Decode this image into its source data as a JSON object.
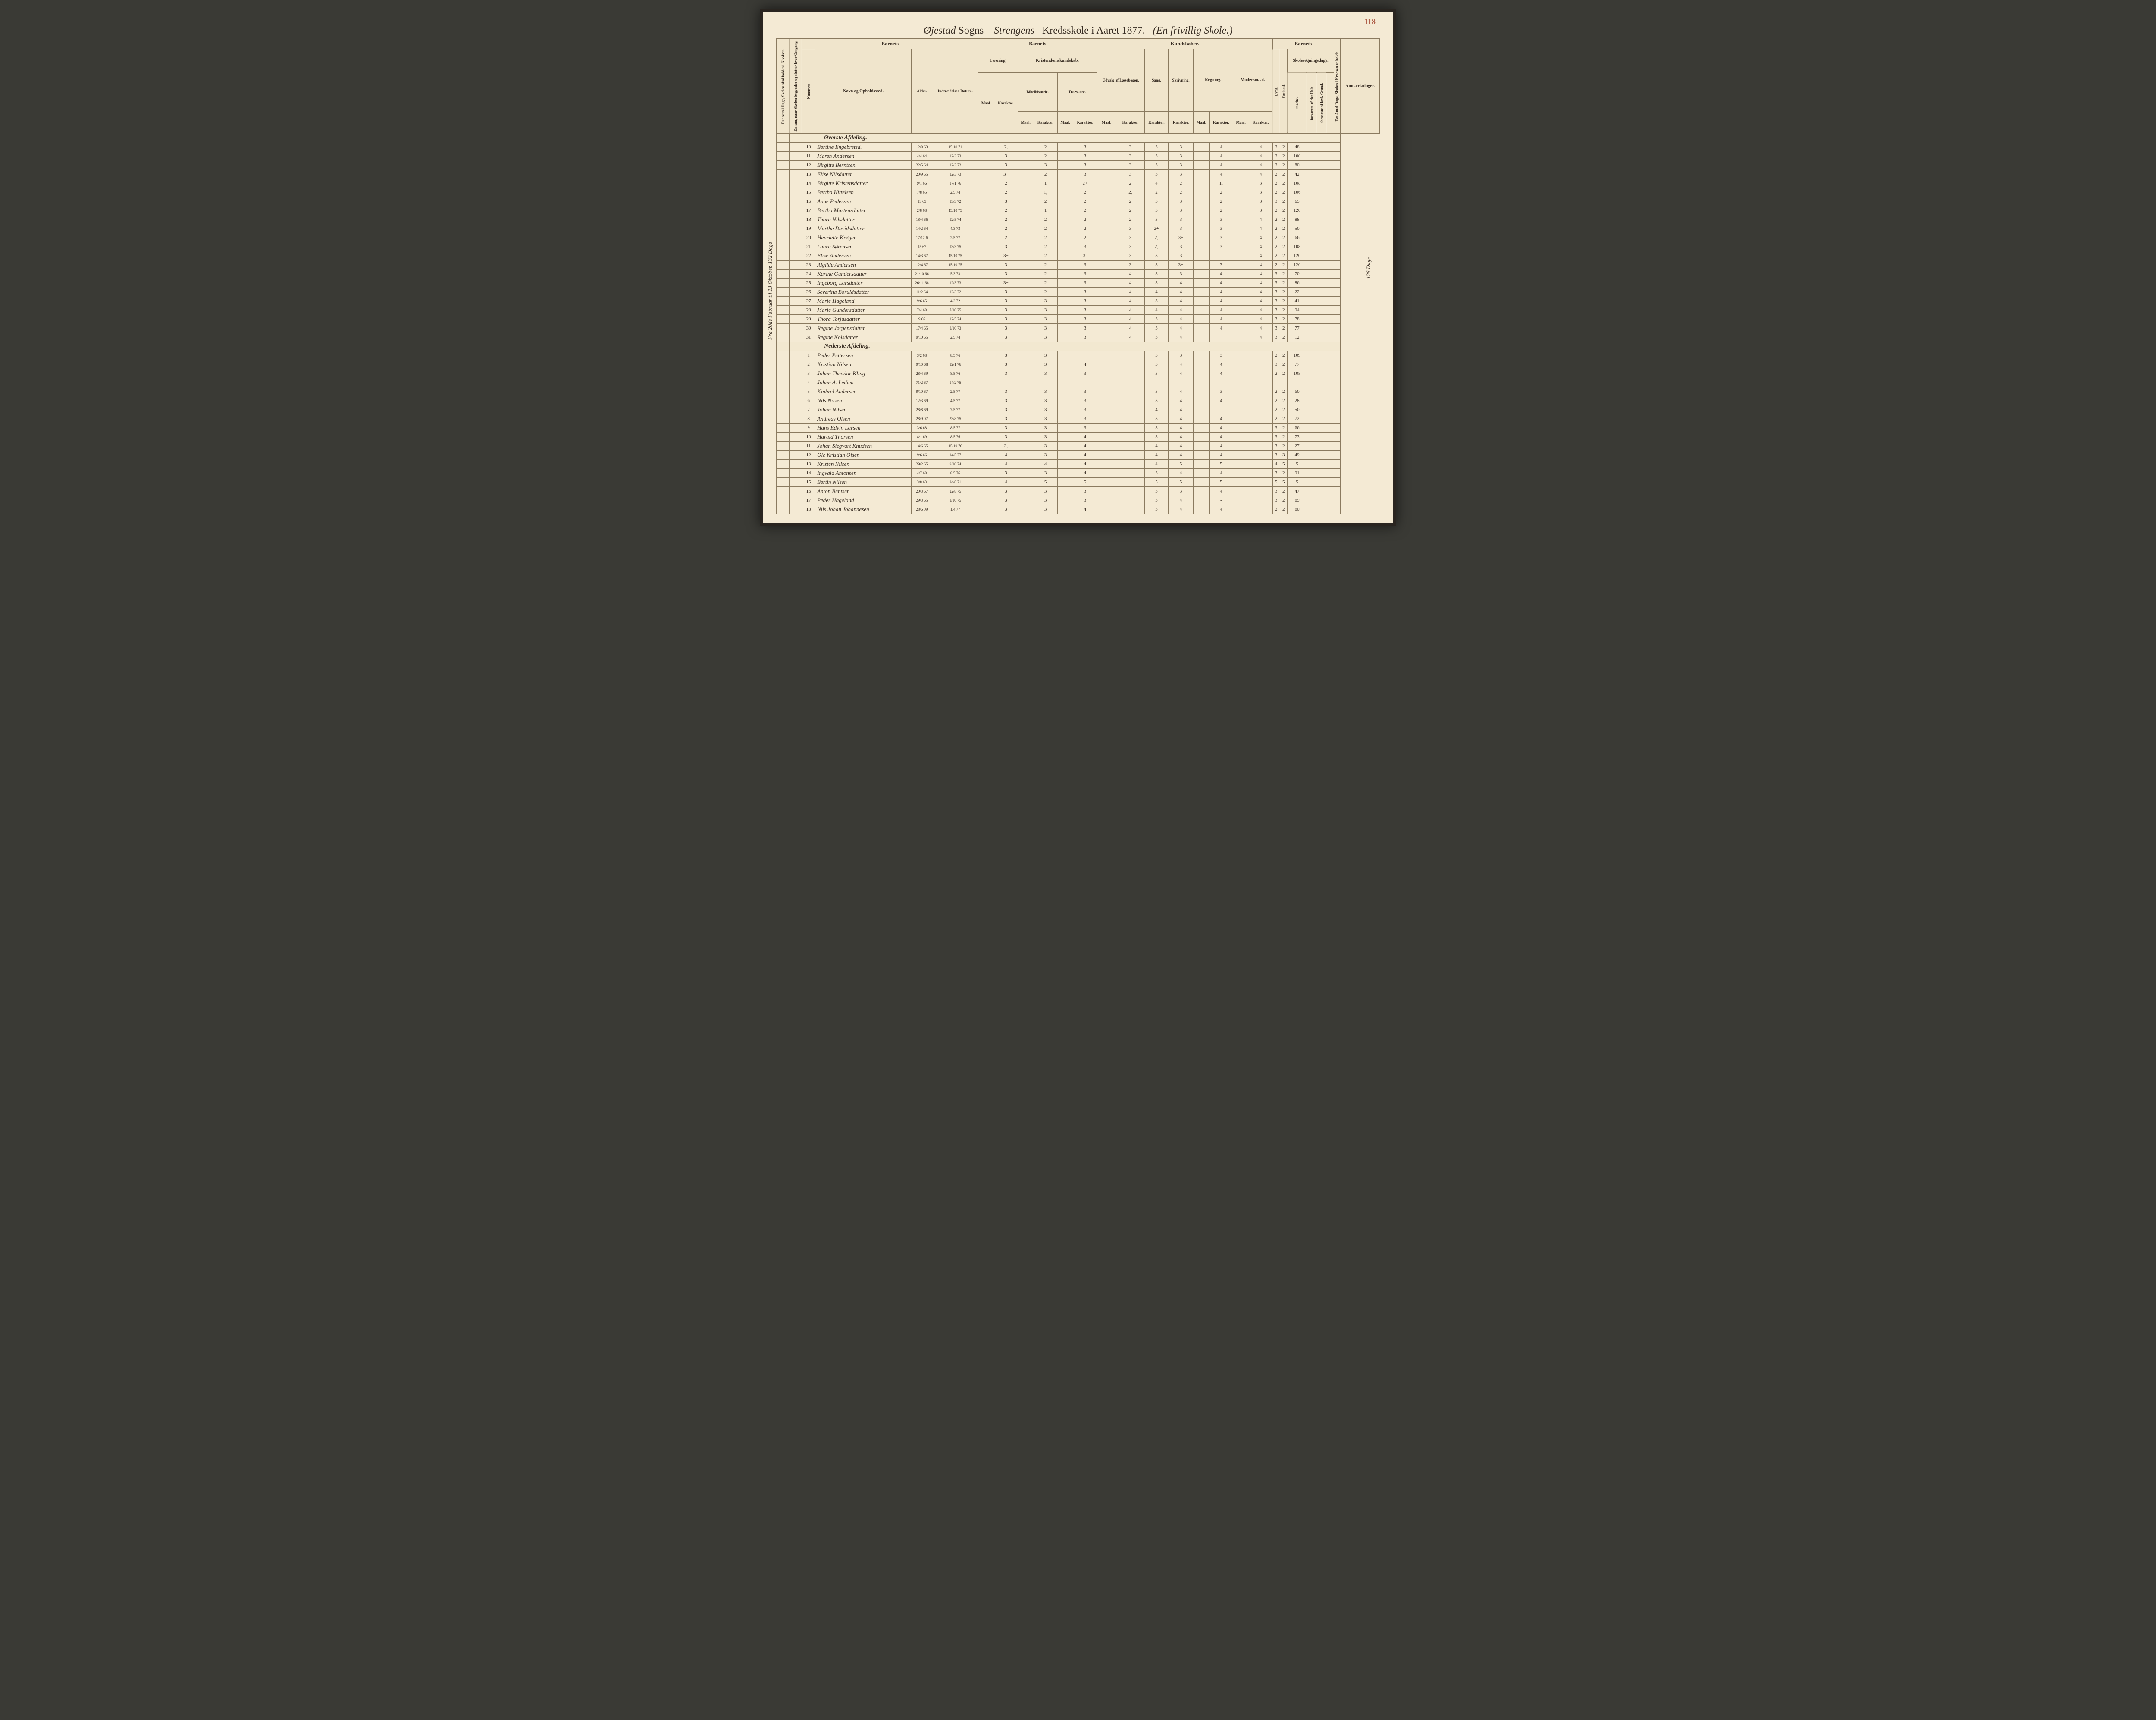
{
  "page_number": "118",
  "title_left": "Øjestad",
  "title_sogns": "Sogns",
  "title_over": "Strengens",
  "title_right": "Kredsskole i Aaret 1877.",
  "title_paren": "(En frivillig Skole.)",
  "margin_left": "Fra 20de Februar til 13 Oktober.  132 Dage",
  "margin_right": "126 Dage",
  "headers": {
    "g_barnets1": "Barnets",
    "g_barnets2": "Barnets",
    "g_kundskaber": "Kundskaber.",
    "g_barnets3": "Barnets",
    "anm": "Anmærkninger.",
    "antal_dage_left": "Det Antal Dage, Skolen skal holdes i Kredsen.",
    "datum": "Datum, naar Skolen begynder og slutter hver Omgang.",
    "nummer": "Nummer.",
    "navn": "Navn og Opholdssted.",
    "alder": "Alder.",
    "indtr": "Indtrædelses-Datum.",
    "laesning": "Læsning.",
    "kristendom": "Kristendomskundskab.",
    "bibel": "Bibelhistorie.",
    "troes": "Troeslære.",
    "udvalg": "Udvalg af Læsebogen.",
    "sang": "Sang.",
    "skriv": "Skrivning.",
    "regning": "Regning.",
    "moders": "Modersmaal.",
    "skoles": "Skolesøgningsdage.",
    "maal": "Maal.",
    "karak": "Karakter.",
    "evne": "Evne.",
    "forhold": "Forhold.",
    "modte": "mødte.",
    "fors_hele": "forsømte af det Hele.",
    "fors_grund": "forsømte af lovl. Grund.",
    "antal_dage_right": "Det Antal Dage, Skolen i Kredsen er holdt."
  },
  "section1": "Øverste Afdeling.",
  "section2": "Nederste Afdeling.",
  "rows1": [
    {
      "n": "10",
      "name": "Bertine Engebretsd.",
      "ald": "12/8 63",
      "ind": "15/10 71",
      "l_m": "",
      "l_k": "2,",
      "b_m": "",
      "b_k": "2",
      "t_m": "",
      "t_k": "3",
      "u_m": "",
      "u_k": "3",
      "sa": "3",
      "sk": "3",
      "r_m": "",
      "r_k": "4",
      "m_m": "",
      "m_k": "4",
      "ev": "2",
      "fo": "2",
      "mo": "48",
      "f1": "",
      "f2": ""
    },
    {
      "n": "11",
      "name": "Maren Andersen",
      "ald": "4/4 64",
      "ind": "12/3 73",
      "l_m": "",
      "l_k": "3",
      "b_m": "",
      "b_k": "2",
      "t_m": "",
      "t_k": "3",
      "u_m": "",
      "u_k": "3",
      "sa": "3",
      "sk": "3",
      "r_m": "",
      "r_k": "4",
      "m_m": "",
      "m_k": "4",
      "ev": "2",
      "fo": "2",
      "mo": "100",
      "f1": "",
      "f2": ""
    },
    {
      "n": "12",
      "name": "Birgitte Berntsen",
      "ald": "22/5 64",
      "ind": "12/3 72",
      "l_m": "",
      "l_k": "3",
      "b_m": "",
      "b_k": "3",
      "t_m": "",
      "t_k": "3",
      "u_m": "",
      "u_k": "3",
      "sa": "3",
      "sk": "3",
      "r_m": "",
      "r_k": "4",
      "m_m": "",
      "m_k": "4",
      "ev": "2",
      "fo": "2",
      "mo": "80",
      "f1": "",
      "f2": ""
    },
    {
      "n": "13",
      "name": "Elise Nilsdatter",
      "ald": "20/9 65",
      "ind": "12/3 73",
      "l_m": "",
      "l_k": "3+",
      "b_m": "",
      "b_k": "2",
      "t_m": "",
      "t_k": "3",
      "u_m": "",
      "u_k": "3",
      "sa": "3",
      "sk": "3",
      "r_m": "",
      "r_k": "4",
      "m_m": "",
      "m_k": "4",
      "ev": "2",
      "fo": "2",
      "mo": "42",
      "f1": "",
      "f2": ""
    },
    {
      "n": "14",
      "name": "Birgitte Kristensdatter",
      "ald": "9/1 66",
      "ind": "17/1 76",
      "l_m": "",
      "l_k": "2",
      "b_m": "",
      "b_k": "1",
      "t_m": "",
      "t_k": "2+",
      "u_m": "",
      "u_k": "2",
      "sa": "4",
      "sk": "2",
      "r_m": "",
      "r_k": "1,",
      "m_m": "",
      "m_k": "3",
      "ev": "2",
      "fo": "2",
      "mo": "108",
      "f1": "",
      "f2": ""
    },
    {
      "n": "15",
      "name": "Bertha Kittelsen",
      "ald": "7/8 65",
      "ind": "2/5 74",
      "l_m": "",
      "l_k": "2",
      "b_m": "",
      "b_k": "1,",
      "t_m": "",
      "t_k": "2",
      "u_m": "",
      "u_k": "2,",
      "sa": "2",
      "sk": "2",
      "r_m": "",
      "r_k": "2",
      "m_m": "",
      "m_k": "3",
      "ev": "2",
      "fo": "2",
      "mo": "106",
      "f1": "",
      "f2": ""
    },
    {
      "n": "16",
      "name": "Anne Pedersen",
      "ald": "13 65",
      "ind": "13/3 72",
      "l_m": "",
      "l_k": "3",
      "b_m": "",
      "b_k": "2",
      "t_m": "",
      "t_k": "2",
      "u_m": "",
      "u_k": "2",
      "sa": "3",
      "sk": "3",
      "r_m": "",
      "r_k": "2",
      "m_m": "",
      "m_k": "3",
      "ev": "3",
      "fo": "2",
      "mo": "65",
      "f1": "",
      "f2": ""
    },
    {
      "n": "17",
      "name": "Bertha Martensdatter",
      "ald": "2/8 68",
      "ind": "15/10 75",
      "l_m": "",
      "l_k": "2",
      "b_m": "",
      "b_k": "1",
      "t_m": "",
      "t_k": "2",
      "u_m": "",
      "u_k": "2",
      "sa": "3",
      "sk": "3",
      "r_m": "",
      "r_k": "2",
      "m_m": "",
      "m_k": "3",
      "ev": "2",
      "fo": "2",
      "mo": "120",
      "f1": "",
      "f2": ""
    },
    {
      "n": "18",
      "name": "Thora Nilsdatter",
      "ald": "18/4 66",
      "ind": "12/5 74",
      "l_m": "",
      "l_k": "2",
      "b_m": "",
      "b_k": "2",
      "t_m": "",
      "t_k": "2",
      "u_m": "",
      "u_k": "2",
      "sa": "3",
      "sk": "3",
      "r_m": "",
      "r_k": "3",
      "m_m": "",
      "m_k": "4",
      "ev": "2",
      "fo": "2",
      "mo": "88",
      "f1": "",
      "f2": ""
    },
    {
      "n": "19",
      "name": "Marthe Davidsdatter",
      "ald": "14/2 64",
      "ind": "4/3 73",
      "l_m": "",
      "l_k": "2",
      "b_m": "",
      "b_k": "2",
      "t_m": "",
      "t_k": "2",
      "u_m": "",
      "u_k": "3",
      "sa": "2+",
      "sk": "3",
      "r_m": "",
      "r_k": "3",
      "m_m": "",
      "m_k": "4",
      "ev": "2",
      "fo": "2",
      "mo": "50",
      "f1": "",
      "f2": ""
    },
    {
      "n": "20",
      "name": "Henriette Krøger",
      "ald": "17/12 6",
      "ind": "2/5 77",
      "l_m": "",
      "l_k": "2",
      "b_m": "",
      "b_k": "2",
      "t_m": "",
      "t_k": "2",
      "u_m": "",
      "u_k": "3",
      "sa": "2,",
      "sk": "3+",
      "r_m": "",
      "r_k": "3",
      "m_m": "",
      "m_k": "4",
      "ev": "2",
      "fo": "2",
      "mo": "66",
      "f1": "",
      "f2": ""
    },
    {
      "n": "21",
      "name": "Laura Sørensen",
      "ald": "15 67",
      "ind": "13/3 75",
      "l_m": "",
      "l_k": "3",
      "b_m": "",
      "b_k": "2",
      "t_m": "",
      "t_k": "3",
      "u_m": "",
      "u_k": "3",
      "sa": "2,",
      "sk": "3",
      "r_m": "",
      "r_k": "3",
      "m_m": "",
      "m_k": "4",
      "ev": "2",
      "fo": "2",
      "mo": "108",
      "f1": "",
      "f2": ""
    },
    {
      "n": "22",
      "name": "Elise Andersen",
      "ald": "14/3 67",
      "ind": "15/10 75",
      "l_m": "",
      "l_k": "3+",
      "b_m": "",
      "b_k": "2",
      "t_m": "",
      "t_k": "3-",
      "u_m": "",
      "u_k": "3",
      "sa": "3",
      "sk": "3",
      "r_m": "",
      "r_k": "",
      "m_m": "",
      "m_k": "4",
      "ev": "2",
      "fo": "2",
      "mo": "120",
      "f1": "",
      "f2": ""
    },
    {
      "n": "23",
      "name": "Algilde Andersen",
      "ald": "12/4 67",
      "ind": "15/10 75",
      "l_m": "",
      "l_k": "3",
      "b_m": "",
      "b_k": "2",
      "t_m": "",
      "t_k": "3",
      "u_m": "",
      "u_k": "3",
      "sa": "3",
      "sk": "3+",
      "r_m": "",
      "r_k": "3",
      "m_m": "",
      "m_k": "4",
      "ev": "2",
      "fo": "2",
      "mo": "120",
      "f1": "",
      "f2": ""
    },
    {
      "n": "24",
      "name": "Karine Gundersdatter",
      "ald": "21/10 66",
      "ind": "5/3 73",
      "l_m": "",
      "l_k": "3",
      "b_m": "",
      "b_k": "2",
      "t_m": "",
      "t_k": "3",
      "u_m": "",
      "u_k": "4",
      "sa": "3",
      "sk": "3",
      "r_m": "",
      "r_k": "4",
      "m_m": "",
      "m_k": "4",
      "ev": "3",
      "fo": "2",
      "mo": "70",
      "f1": "",
      "f2": ""
    },
    {
      "n": "25",
      "name": "Ingeborg Larsdatter",
      "ald": "26/11 66",
      "ind": "12/3 73",
      "l_m": "",
      "l_k": "3+",
      "b_m": "",
      "b_k": "2",
      "t_m": "",
      "t_k": "3",
      "u_m": "",
      "u_k": "4",
      "sa": "3",
      "sk": "4",
      "r_m": "",
      "r_k": "4",
      "m_m": "",
      "m_k": "4",
      "ev": "3",
      "fo": "2",
      "mo": "86",
      "f1": "",
      "f2": ""
    },
    {
      "n": "26",
      "name": "Severina Børuldsdatter",
      "ald": "11/2 64",
      "ind": "12/3 72",
      "l_m": "",
      "l_k": "3",
      "b_m": "",
      "b_k": "2",
      "t_m": "",
      "t_k": "3",
      "u_m": "",
      "u_k": "4",
      "sa": "4",
      "sk": "4",
      "r_m": "",
      "r_k": "4",
      "m_m": "",
      "m_k": "4",
      "ev": "3",
      "fo": "2",
      "mo": "22",
      "f1": "",
      "f2": ""
    },
    {
      "n": "27",
      "name": "Marie Hageland",
      "ald": "9/6 65",
      "ind": "4/2 72",
      "l_m": "",
      "l_k": "3",
      "b_m": "",
      "b_k": "3",
      "t_m": "",
      "t_k": "3",
      "u_m": "",
      "u_k": "4",
      "sa": "3",
      "sk": "4",
      "r_m": "",
      "r_k": "4",
      "m_m": "",
      "m_k": "4",
      "ev": "3",
      "fo": "2",
      "mo": "41",
      "f1": "",
      "f2": ""
    },
    {
      "n": "28",
      "name": "Marie Gundersdatter",
      "ald": "7/4 68",
      "ind": "7/10 75",
      "l_m": "",
      "l_k": "3",
      "b_m": "",
      "b_k": "3",
      "t_m": "",
      "t_k": "3",
      "u_m": "",
      "u_k": "4",
      "sa": "4",
      "sk": "4",
      "r_m": "",
      "r_k": "4",
      "m_m": "",
      "m_k": "4",
      "ev": "3",
      "fo": "2",
      "mo": "94",
      "f1": "",
      "f2": ""
    },
    {
      "n": "29",
      "name": "Thora Torjusdatter",
      "ald": "9 66",
      "ind": "12/5 74",
      "l_m": "",
      "l_k": "3",
      "b_m": "",
      "b_k": "3",
      "t_m": "",
      "t_k": "3",
      "u_m": "",
      "u_k": "4",
      "sa": "3",
      "sk": "4",
      "r_m": "",
      "r_k": "4",
      "m_m": "",
      "m_k": "4",
      "ev": "3",
      "fo": "2",
      "mo": "78",
      "f1": "",
      "f2": ""
    },
    {
      "n": "30",
      "name": "Regine Jørgensdatter",
      "ald": "17/4 65",
      "ind": "3/10 73",
      "l_m": "",
      "l_k": "3",
      "b_m": "",
      "b_k": "3",
      "t_m": "",
      "t_k": "3",
      "u_m": "",
      "u_k": "4",
      "sa": "3",
      "sk": "4",
      "r_m": "",
      "r_k": "4",
      "m_m": "",
      "m_k": "4",
      "ev": "3",
      "fo": "2",
      "mo": "77",
      "f1": "",
      "f2": ""
    },
    {
      "n": "31",
      "name": "Regine Kolsdatter",
      "ald": "9/10 65",
      "ind": "2/5 74",
      "l_m": "",
      "l_k": "3",
      "b_m": "",
      "b_k": "3",
      "t_m": "",
      "t_k": "3",
      "u_m": "",
      "u_k": "4",
      "sa": "3",
      "sk": "4",
      "r_m": "",
      "r_k": "",
      "m_m": "",
      "m_k": "4",
      "ev": "3",
      "fo": "2",
      "mo": "12",
      "f1": "",
      "f2": ""
    }
  ],
  "rows2": [
    {
      "n": "1",
      "name": "Peder Pettersen",
      "ald": "3/2 68",
      "ind": "8/5 76",
      "l_m": "",
      "l_k": "3",
      "b_m": "",
      "b_k": "3",
      "t_m": "",
      "t_k": "",
      "u_m": "",
      "u_k": "",
      "sa": "3",
      "sk": "3",
      "r_m": "",
      "r_k": "3",
      "m_m": "",
      "m_k": "",
      "ev": "2",
      "fo": "2",
      "mo": "109",
      "f1": "",
      "f2": ""
    },
    {
      "n": "2",
      "name": "Kristian Nilsen",
      "ald": "9/10 68",
      "ind": "12/1 76",
      "l_m": "",
      "l_k": "3",
      "b_m": "",
      "b_k": "3",
      "t_m": "",
      "t_k": "4",
      "u_m": "",
      "u_k": "",
      "sa": "3",
      "sk": "4",
      "r_m": "",
      "r_k": "4",
      "m_m": "",
      "m_k": "",
      "ev": "3",
      "fo": "2",
      "mo": "77",
      "f1": "",
      "f2": ""
    },
    {
      "n": "3",
      "name": "Johan Theodor Kling",
      "ald": "28/4 69",
      "ind": "8/5 76",
      "l_m": "",
      "l_k": "3",
      "b_m": "",
      "b_k": "3",
      "t_m": "",
      "t_k": "3",
      "u_m": "",
      "u_k": "",
      "sa": "3",
      "sk": "4",
      "r_m": "",
      "r_k": "4",
      "m_m": "",
      "m_k": "",
      "ev": "2",
      "fo": "2",
      "mo": "105",
      "f1": "",
      "f2": ""
    },
    {
      "n": "4",
      "name": "Johan A. Ledien",
      "ald": "71/2 67",
      "ind": "14/2 75",
      "l_m": "",
      "l_k": "",
      "b_m": "",
      "b_k": "",
      "t_m": "",
      "t_k": "",
      "u_m": "",
      "u_k": "",
      "sa": "",
      "sk": "",
      "r_m": "",
      "r_k": "",
      "m_m": "",
      "m_k": "",
      "ev": "",
      "fo": "",
      "mo": "",
      "f1": "",
      "f2": ""
    },
    {
      "n": "5",
      "name": "Kinbrel Andersen",
      "ald": "9/10 67",
      "ind": "2/5 77",
      "l_m": "",
      "l_k": "3",
      "b_m": "",
      "b_k": "3",
      "t_m": "",
      "t_k": "3",
      "u_m": "",
      "u_k": "",
      "sa": "3",
      "sk": "4",
      "r_m": "",
      "r_k": "3",
      "m_m": "",
      "m_k": "",
      "ev": "2",
      "fo": "2",
      "mo": "60",
      "f1": "",
      "f2": ""
    },
    {
      "n": "6",
      "name": "Nils Nilsen",
      "ald": "12/3 69",
      "ind": "4/5 77",
      "l_m": "",
      "l_k": "3",
      "b_m": "",
      "b_k": "3",
      "t_m": "",
      "t_k": "3",
      "u_m": "",
      "u_k": "",
      "sa": "3",
      "sk": "4",
      "r_m": "",
      "r_k": "4",
      "m_m": "",
      "m_k": "",
      "ev": "2",
      "fo": "2",
      "mo": "28",
      "f1": "",
      "f2": ""
    },
    {
      "n": "7",
      "name": "Johan Nilsen",
      "ald": "28/8 69",
      "ind": "7/5 77",
      "l_m": "",
      "l_k": "3",
      "b_m": "",
      "b_k": "3",
      "t_m": "",
      "t_k": "3",
      "u_m": "",
      "u_k": "",
      "sa": "4",
      "sk": "4",
      "r_m": "",
      "r_k": "",
      "m_m": "",
      "m_k": "",
      "ev": "2",
      "fo": "2",
      "mo": "50",
      "f1": "",
      "f2": ""
    },
    {
      "n": "8",
      "name": "Andreas Olsen",
      "ald": "28/9 07",
      "ind": "23/8 75",
      "l_m": "",
      "l_k": "3",
      "b_m": "",
      "b_k": "3",
      "t_m": "",
      "t_k": "3",
      "u_m": "",
      "u_k": "",
      "sa": "3",
      "sk": "4",
      "r_m": "",
      "r_k": "4",
      "m_m": "",
      "m_k": "",
      "ev": "2",
      "fo": "2",
      "mo": "72",
      "f1": "",
      "f2": ""
    },
    {
      "n": "9",
      "name": "Hans Edvin Larsen",
      "ald": "3/6 68",
      "ind": "8/5 77",
      "l_m": "",
      "l_k": "3",
      "b_m": "",
      "b_k": "3",
      "t_m": "",
      "t_k": "3",
      "u_m": "",
      "u_k": "",
      "sa": "3",
      "sk": "4",
      "r_m": "",
      "r_k": "4",
      "m_m": "",
      "m_k": "",
      "ev": "3",
      "fo": "2",
      "mo": "66",
      "f1": "",
      "f2": ""
    },
    {
      "n": "10",
      "name": "Harald Thorsen",
      "ald": "4/1 69",
      "ind": "8/5 76",
      "l_m": "",
      "l_k": "3",
      "b_m": "",
      "b_k": "3",
      "t_m": "",
      "t_k": "4",
      "u_m": "",
      "u_k": "",
      "sa": "3",
      "sk": "4",
      "r_m": "",
      "r_k": "4",
      "m_m": "",
      "m_k": "",
      "ev": "3",
      "fo": "2",
      "mo": "73",
      "f1": "",
      "f2": ""
    },
    {
      "n": "11",
      "name": "Johan Siegvart Knudsen",
      "ald": "14/6 65",
      "ind": "15/10 76",
      "l_m": "",
      "l_k": "3,",
      "b_m": "",
      "b_k": "3",
      "t_m": "",
      "t_k": "4",
      "u_m": "",
      "u_k": "",
      "sa": "4",
      "sk": "4",
      "r_m": "",
      "r_k": "4",
      "m_m": "",
      "m_k": "",
      "ev": "3",
      "fo": "2",
      "mo": "27",
      "f1": "",
      "f2": ""
    },
    {
      "n": "12",
      "name": "Ole Kristian Olsen",
      "ald": "9/6 66",
      "ind": "14/5 77",
      "l_m": "",
      "l_k": "4",
      "b_m": "",
      "b_k": "3",
      "t_m": "",
      "t_k": "4",
      "u_m": "",
      "u_k": "",
      "sa": "4",
      "sk": "4",
      "r_m": "",
      "r_k": "4",
      "m_m": "",
      "m_k": "",
      "ev": "3",
      "fo": "3",
      "mo": "49",
      "f1": "",
      "f2": ""
    },
    {
      "n": "13",
      "name": "Kristen Nilsen",
      "ald": "29/2 65",
      "ind": "9/10 74",
      "l_m": "",
      "l_k": "4",
      "b_m": "",
      "b_k": "4",
      "t_m": "",
      "t_k": "4",
      "u_m": "",
      "u_k": "",
      "sa": "4",
      "sk": "5",
      "r_m": "",
      "r_k": "5",
      "m_m": "",
      "m_k": "",
      "ev": "4",
      "fo": "5",
      "mo": "5",
      "f1": "",
      "f2": ""
    },
    {
      "n": "14",
      "name": "Ingvald Antonsen",
      "ald": "4/7 68",
      "ind": "8/5 76",
      "l_m": "",
      "l_k": "3",
      "b_m": "",
      "b_k": "3",
      "t_m": "",
      "t_k": "4",
      "u_m": "",
      "u_k": "",
      "sa": "3",
      "sk": "4",
      "r_m": "",
      "r_k": "4",
      "m_m": "",
      "m_k": "",
      "ev": "3",
      "fo": "2",
      "mo": "91",
      "f1": "",
      "f2": ""
    },
    {
      "n": "15",
      "name": "Bertin Nilsen",
      "ald": "3/8 63",
      "ind": "24/6 71",
      "l_m": "",
      "l_k": "4",
      "b_m": "",
      "b_k": "5",
      "t_m": "",
      "t_k": "5",
      "u_m": "",
      "u_k": "",
      "sa": "5",
      "sk": "5",
      "r_m": "",
      "r_k": "5",
      "m_m": "",
      "m_k": "",
      "ev": "5",
      "fo": "5",
      "mo": "5",
      "f1": "",
      "f2": ""
    },
    {
      "n": "16",
      "name": "Anton Bentsen",
      "ald": "20/3 67",
      "ind": "22/8 75",
      "l_m": "",
      "l_k": "3",
      "b_m": "",
      "b_k": "3",
      "t_m": "",
      "t_k": "3",
      "u_m": "",
      "u_k": "",
      "sa": "3",
      "sk": "3",
      "r_m": "",
      "r_k": "4",
      "m_m": "",
      "m_k": "",
      "ev": "3",
      "fo": "2",
      "mo": "47",
      "f1": "",
      "f2": ""
    },
    {
      "n": "17",
      "name": "Peder Hageland",
      "ald": "29/3 65",
      "ind": "1/10 75",
      "l_m": "",
      "l_k": "3",
      "b_m": "",
      "b_k": "3",
      "t_m": "",
      "t_k": "3",
      "u_m": "",
      "u_k": "",
      "sa": "3",
      "sk": "4",
      "r_m": "",
      "r_k": "-",
      "m_m": "",
      "m_k": "",
      "ev": "3",
      "fo": "2",
      "mo": "69",
      "f1": "",
      "f2": ""
    },
    {
      "n": "18",
      "name": "Nils Johan Johannesen",
      "ald": "28/6 09",
      "ind": "1/4 77",
      "l_m": "",
      "l_k": "3",
      "b_m": "",
      "b_k": "3",
      "t_m": "",
      "t_k": "4",
      "u_m": "",
      "u_k": "",
      "sa": "3",
      "sk": "4",
      "r_m": "",
      "r_k": "4",
      "m_m": "",
      "m_k": "",
      "ev": "2",
      "fo": "2",
      "mo": "60",
      "f1": "",
      "f2": ""
    }
  ],
  "colors": {
    "paper": "#f4ead4",
    "border": "#8a7a5f",
    "ink": "#3a2f25",
    "red": "#b0604a"
  }
}
